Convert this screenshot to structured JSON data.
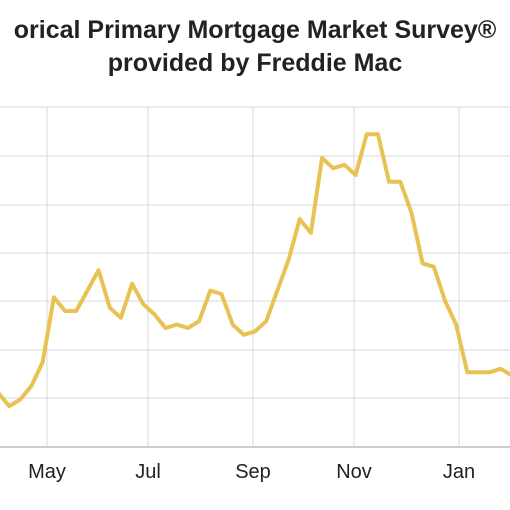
{
  "chart_data": {
    "type": "line",
    "title_lines": [
      "orical Primary Mortgage Market Survey®",
      "provided by Freddie Mac"
    ],
    "x_tick_labels": [
      "May",
      "Jul",
      "Sep",
      "Nov",
      "Jan"
    ],
    "line_color": "#E8C252",
    "grid": true,
    "grid_color": "#d9d9d9",
    "axis_color": "#bdbdbd",
    "series": [
      {
        "values": [
          0.16,
          0.12,
          0.14,
          0.18,
          0.25,
          0.44,
          0.4,
          0.4,
          0.46,
          0.52,
          0.41,
          0.38,
          0.48,
          0.42,
          0.39,
          0.35,
          0.36,
          0.35,
          0.37,
          0.46,
          0.45,
          0.36,
          0.33,
          0.34,
          0.37,
          0.46,
          0.55,
          0.67,
          0.63,
          0.85,
          0.82,
          0.83,
          0.8,
          0.92,
          0.92,
          0.78,
          0.78,
          0.69,
          0.54,
          0.53,
          0.43,
          0.36,
          0.22,
          0.22,
          0.22,
          0.23,
          0.21
        ]
      }
    ]
  }
}
